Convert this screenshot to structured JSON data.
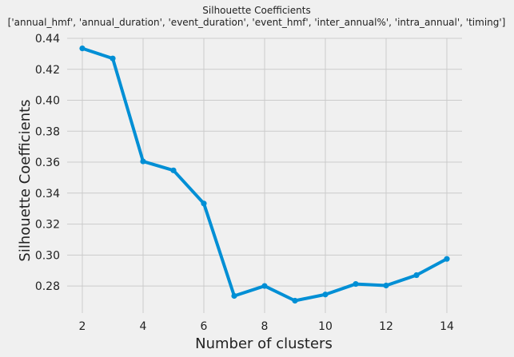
{
  "chart_data": {
    "type": "line",
    "title": "Silhouette Coefficients",
    "subtitle": "['annual_hmf', 'annual_duration', 'event_duration', 'event_hmf', 'inter_annual%', 'intra_annual', 'timing']",
    "xlabel": "Number of clusters",
    "ylabel": "Silhouette Coefficients",
    "x": [
      2,
      3,
      4,
      5,
      6,
      7,
      8,
      9,
      10,
      11,
      12,
      13,
      14
    ],
    "series": [
      {
        "values": [
          0.4335,
          0.427,
          0.3605,
          0.3547,
          0.3333,
          0.2736,
          0.28,
          0.2705,
          0.2745,
          0.2813,
          0.2803,
          0.287,
          0.2975
        ]
      }
    ],
    "xlim": [
      1.5,
      14.5
    ],
    "ylim": [
      0.2625,
      0.44
    ],
    "xticks": [
      2,
      4,
      6,
      8,
      10,
      12,
      14
    ],
    "xtick_labels": [
      "2",
      "4",
      "6",
      "8",
      "10",
      "12",
      "14"
    ],
    "yticks": [
      0.28,
      0.3,
      0.32,
      0.34,
      0.36,
      0.38,
      0.4,
      0.42,
      0.44
    ],
    "ytick_labels": [
      "0.28",
      "0.30",
      "0.32",
      "0.34",
      "0.36",
      "0.38",
      "0.40",
      "0.42",
      "0.44"
    ],
    "grid": true,
    "colors": {
      "line": "#008fd5",
      "background": "#f0f0f0",
      "grid": "#cbcbcb"
    }
  }
}
